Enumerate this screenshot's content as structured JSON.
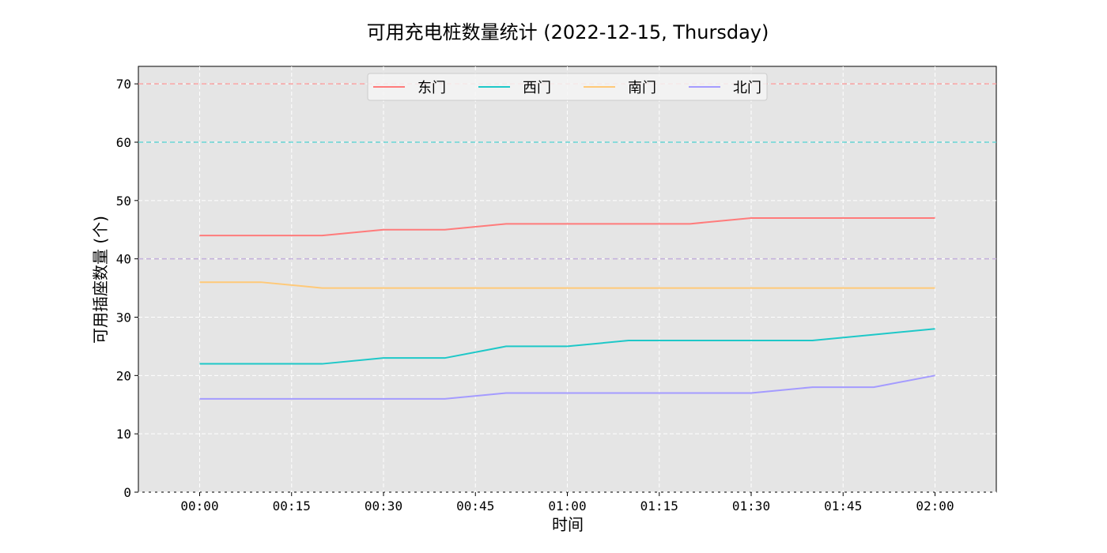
{
  "chart_data": {
    "type": "line",
    "title": "可用充电桩数量统计 (2022-12-15, Thursday)",
    "xlabel": "时间",
    "ylabel": "可用插座数量 (个)",
    "x": [
      "00:00",
      "00:10",
      "00:20",
      "00:30",
      "00:40",
      "00:50",
      "01:00",
      "01:10",
      "01:20",
      "01:30",
      "01:40",
      "01:50",
      "02:00"
    ],
    "x_ticks": [
      "00:00",
      "00:15",
      "00:30",
      "00:45",
      "01:00",
      "01:15",
      "01:30",
      "01:45",
      "02:00"
    ],
    "xlim": [
      "-00:10",
      "02:10"
    ],
    "ylim": [
      0,
      73
    ],
    "y_ticks": [
      0,
      10,
      20,
      30,
      40,
      50,
      60,
      70
    ],
    "grid": true,
    "legend_position": "top-center",
    "series": [
      {
        "name": "东门",
        "color": "#ff7b7b",
        "values": [
          44,
          44,
          44,
          45,
          45,
          46,
          46,
          46,
          46,
          47,
          47,
          47,
          47
        ],
        "capacity": 70
      },
      {
        "name": "西门",
        "color": "#1ec8c8",
        "values": [
          22,
          22,
          22,
          23,
          23,
          25,
          25,
          26,
          26,
          26,
          26,
          27,
          28
        ],
        "capacity": 60
      },
      {
        "name": "南门",
        "color": "#ffc978",
        "values": [
          36,
          36,
          35,
          35,
          35,
          35,
          35,
          35,
          35,
          35,
          35,
          35,
          35
        ],
        "capacity": 40
      },
      {
        "name": "北门",
        "color": "#a49bff",
        "values": [
          16,
          16,
          16,
          16,
          16,
          17,
          17,
          17,
          17,
          17,
          18,
          18,
          20
        ],
        "capacity": 40
      }
    ]
  }
}
